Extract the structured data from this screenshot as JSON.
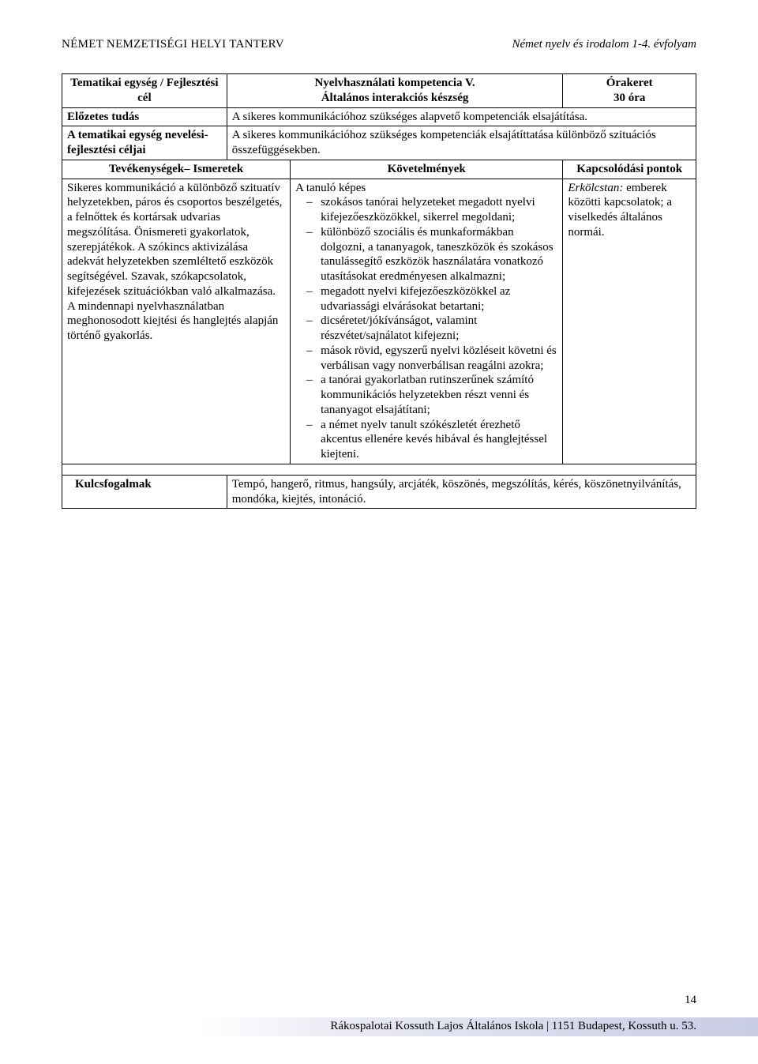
{
  "header": {
    "left": "NÉMET NEMZETISÉGI HELYI TANTERV",
    "right": "Német nyelv és irodalom 1-4. évfolyam"
  },
  "rows": {
    "r1": {
      "label": "Tematikai egység / Fejlesztési cél",
      "title": "Nyelvhasználati kompetencia V.",
      "subtitle": "Általános interakciós készség",
      "hours_label": "Órakeret",
      "hours_value": "30 óra"
    },
    "r2": {
      "label": "Előzetes tudás",
      "text": "A sikeres kommunikációhoz szükséges alapvető kompetenciák elsajátítása."
    },
    "r3": {
      "label": "A tematikai egység nevelési-fejlesztési céljai",
      "text": "A sikeres kommunikációhoz szükséges kompetenciák elsajátíttatása különböző szituációs összefüggésekben."
    },
    "r4": {
      "activities_label": "Tevékenységek– Ismeretek",
      "req_label": "Követelmények",
      "link_label": "Kapcsolódási pontok"
    },
    "r5": {
      "activities_text": "Sikeres kommunikáció a különböző szituatív helyzetekben, páros és csoportos beszélgetés, a felnőttek és kortársak udvarias megszólítása. Önismereti gyakorlatok, szerepjátékok. A szókincs aktivizálása adekvát helyzetekben szemléltető eszközök segítségével. Szavak, szókapcsolatok, kifejezések szituációkban való alkalmazása.\nA mindennapi nyelvhasználatban meghonosodott kiejtési és hanglejtés alapján történő gyakorlás.",
      "req_intro": "A tanuló képes",
      "req_items": [
        "szokásos tanórai helyzeteket megadott nyelvi kifejezőeszközökkel, sikerrel megoldani;",
        "különböző szociális és munkaformákban dolgozni, a tananyagok, taneszközök és szokásos tanulássegítő eszközök használatára vonatkozó utasításokat eredményesen alkalmazni;",
        "megadott nyelvi kifejezőeszközökkel az udvariassági elvárásokat betartani;",
        "dicséretet/jókívánságot, valamint részvétet/sajnálatot kifejezni;",
        "mások rövid, egyszerű nyelvi közléseit követni és verbálisan vagy nonverbálisan reagálni azokra;",
        "a tanórai gyakorlatban rutinszerűnek számító kommunikációs helyzetekben részt venni és tananyagot elsajátítani;",
        "a német nyelv tanult szókészletét érezhető akcentus ellenére kevés hibával és hanglejtéssel kiejteni."
      ],
      "link_text_italic": "Erkölcstan:",
      "link_text_rest": " emberek közötti kapcsolatok; a viselkedés általános normái."
    },
    "r6": {
      "label": "Kulcsfogalmak",
      "text": "Tempó, hangerő, ritmus, hangsúly, arcjáték, köszönés, megszólítás, kérés, köszönetnyilvánítás, mondóka, kiejtés, intonáció."
    }
  },
  "footer": {
    "text": "Rákospalotai Kossuth Lajos Általános Iskola | 1151 Budapest, Kossuth u. 53.",
    "page": "14"
  }
}
